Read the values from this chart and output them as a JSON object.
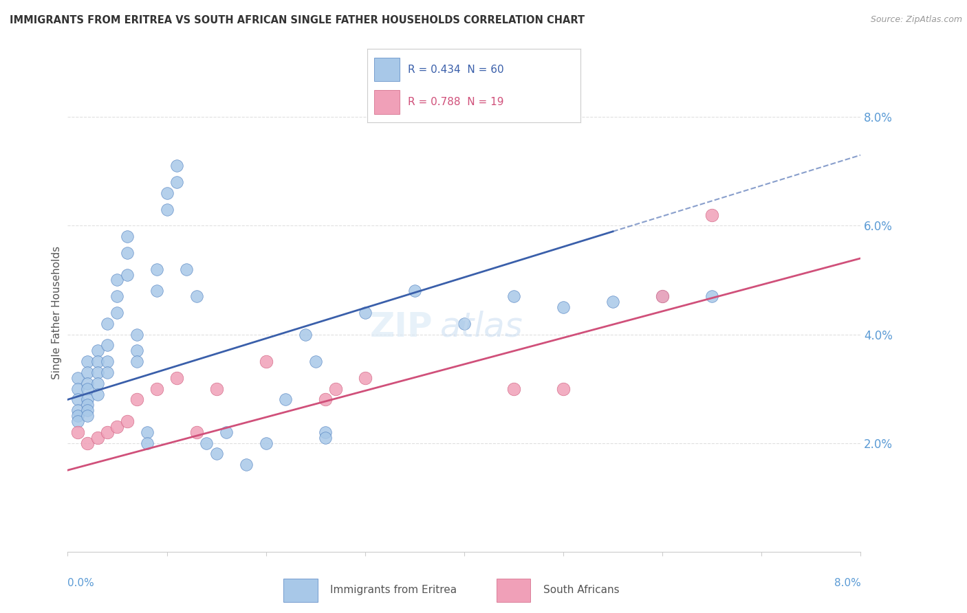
{
  "title": "IMMIGRANTS FROM ERITREA VS SOUTH AFRICAN SINGLE FATHER HOUSEHOLDS CORRELATION CHART",
  "source": "Source: ZipAtlas.com",
  "ylabel": "Single Father Households",
  "x_range": [
    0.0,
    0.08
  ],
  "y_range": [
    0.0,
    0.088
  ],
  "ytick_labels": [
    "2.0%",
    "4.0%",
    "6.0%",
    "8.0%"
  ],
  "ytick_values": [
    0.02,
    0.04,
    0.06,
    0.08
  ],
  "blue_color": "#a8c8e8",
  "pink_color": "#f0a0b8",
  "blue_edge_color": "#5080c0",
  "pink_edge_color": "#d06080",
  "blue_line_color": "#3a5faa",
  "pink_line_color": "#d0507a",
  "blue_line_solid_end": 0.055,
  "blue_line_start_y": 0.028,
  "blue_line_end_y": 0.073,
  "pink_line_start_y": 0.015,
  "pink_line_end_y": 0.054,
  "watermark_text": "ZIP atlas",
  "background_color": "#ffffff",
  "grid_color": "#e0e0e0",
  "legend_box_color": "#ffffff",
  "legend_border_color": "#aaaaaa",
  "blue_scatter": [
    [
      0.001,
      0.032
    ],
    [
      0.001,
      0.03
    ],
    [
      0.001,
      0.028
    ],
    [
      0.001,
      0.026
    ],
    [
      0.001,
      0.025
    ],
    [
      0.001,
      0.024
    ],
    [
      0.002,
      0.035
    ],
    [
      0.002,
      0.033
    ],
    [
      0.002,
      0.031
    ],
    [
      0.002,
      0.03
    ],
    [
      0.002,
      0.028
    ],
    [
      0.002,
      0.027
    ],
    [
      0.002,
      0.026
    ],
    [
      0.002,
      0.025
    ],
    [
      0.003,
      0.037
    ],
    [
      0.003,
      0.035
    ],
    [
      0.003,
      0.033
    ],
    [
      0.003,
      0.031
    ],
    [
      0.003,
      0.029
    ],
    [
      0.004,
      0.042
    ],
    [
      0.004,
      0.038
    ],
    [
      0.004,
      0.035
    ],
    [
      0.004,
      0.033
    ],
    [
      0.005,
      0.05
    ],
    [
      0.005,
      0.047
    ],
    [
      0.005,
      0.044
    ],
    [
      0.006,
      0.058
    ],
    [
      0.006,
      0.055
    ],
    [
      0.006,
      0.051
    ],
    [
      0.007,
      0.04
    ],
    [
      0.007,
      0.037
    ],
    [
      0.007,
      0.035
    ],
    [
      0.008,
      0.022
    ],
    [
      0.008,
      0.02
    ],
    [
      0.009,
      0.052
    ],
    [
      0.009,
      0.048
    ],
    [
      0.01,
      0.066
    ],
    [
      0.01,
      0.063
    ],
    [
      0.011,
      0.068
    ],
    [
      0.011,
      0.071
    ],
    [
      0.012,
      0.052
    ],
    [
      0.013,
      0.047
    ],
    [
      0.014,
      0.02
    ],
    [
      0.015,
      0.018
    ],
    [
      0.016,
      0.022
    ],
    [
      0.018,
      0.016
    ],
    [
      0.02,
      0.02
    ],
    [
      0.022,
      0.028
    ],
    [
      0.024,
      0.04
    ],
    [
      0.025,
      0.035
    ],
    [
      0.026,
      0.022
    ],
    [
      0.026,
      0.021
    ],
    [
      0.03,
      0.044
    ],
    [
      0.035,
      0.048
    ],
    [
      0.04,
      0.042
    ],
    [
      0.045,
      0.047
    ],
    [
      0.05,
      0.045
    ],
    [
      0.055,
      0.046
    ],
    [
      0.06,
      0.047
    ],
    [
      0.065,
      0.047
    ]
  ],
  "pink_scatter": [
    [
      0.001,
      0.022
    ],
    [
      0.002,
      0.02
    ],
    [
      0.003,
      0.021
    ],
    [
      0.004,
      0.022
    ],
    [
      0.005,
      0.023
    ],
    [
      0.006,
      0.024
    ],
    [
      0.007,
      0.028
    ],
    [
      0.009,
      0.03
    ],
    [
      0.011,
      0.032
    ],
    [
      0.013,
      0.022
    ],
    [
      0.015,
      0.03
    ],
    [
      0.02,
      0.035
    ],
    [
      0.026,
      0.028
    ],
    [
      0.027,
      0.03
    ],
    [
      0.03,
      0.032
    ],
    [
      0.045,
      0.03
    ],
    [
      0.05,
      0.03
    ],
    [
      0.06,
      0.047
    ],
    [
      0.065,
      0.062
    ]
  ]
}
